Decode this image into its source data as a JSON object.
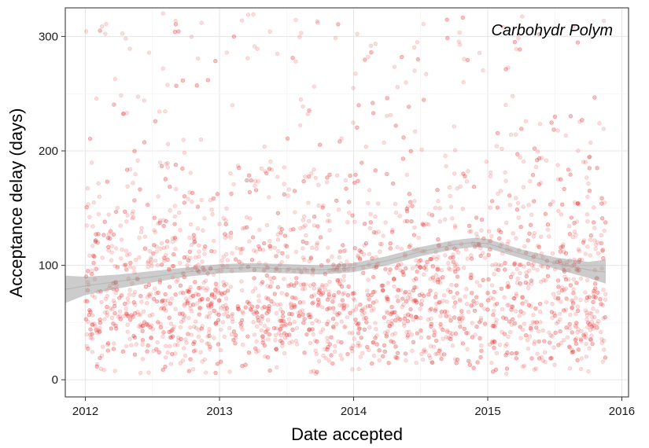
{
  "chart_data": {
    "type": "scatter",
    "title": "",
    "annotation": "Carbohydr Polym",
    "xlabel": "Date accepted",
    "ylabel": "Acceptance delay (days)",
    "xlim": [
      2011.85,
      2016.05
    ],
    "ylim": [
      -15,
      325
    ],
    "x_ticks": [
      2012,
      2013,
      2014,
      2015,
      2016
    ],
    "x_tick_labels": [
      "2012",
      "2013",
      "2014",
      "2015",
      "2016"
    ],
    "y_ticks": [
      0,
      100,
      200,
      300
    ],
    "y_tick_labels": [
      "0",
      "100",
      "200",
      "300"
    ],
    "grid": true,
    "point_color": "#e41a1c",
    "point_alpha": 0.15,
    "smooth_color": "#999999",
    "x_range_of_points": [
      2012.0,
      2015.88
    ],
    "approx_point_count": 3000,
    "smooth_fit": {
      "x": [
        2011.85,
        2012.0,
        2012.25,
        2012.5,
        2012.75,
        2013.0,
        2013.25,
        2013.5,
        2013.75,
        2014.0,
        2014.25,
        2014.5,
        2014.75,
        2014.9,
        2015.0,
        2015.25,
        2015.5,
        2015.75,
        2015.88
      ],
      "y": [
        79,
        82,
        86,
        90,
        94,
        97,
        98,
        97,
        96,
        98,
        104,
        112,
        118,
        120,
        119,
        110,
        102,
        96,
        94
      ],
      "lower": [
        67,
        74,
        80,
        85,
        90,
        93,
        94,
        93,
        92,
        94,
        100,
        108,
        114,
        116,
        115,
        106,
        97,
        89,
        84
      ],
      "upper": [
        91,
        90,
        92,
        95,
        98,
        101,
        102,
        101,
        100,
        102,
        108,
        116,
        122,
        124,
        123,
        114,
        107,
        103,
        105
      ]
    }
  }
}
